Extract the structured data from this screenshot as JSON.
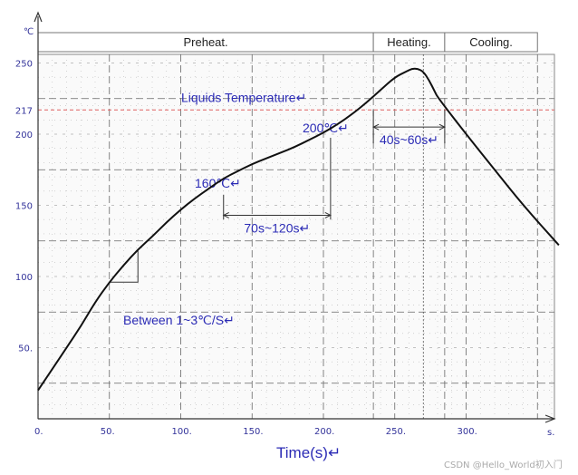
{
  "chart_data": {
    "type": "line",
    "title": "",
    "xlabel": "Time(s)↵",
    "ylabel": "",
    "y_unit": "℃",
    "x_unit": "s.",
    "xlim": [
      0,
      370
    ],
    "ylim": [
      0,
      255
    ],
    "x_ticks": [
      {
        "value": 0,
        "label": "0."
      },
      {
        "value": 50,
        "label": "50."
      },
      {
        "value": 100,
        "label": "100."
      },
      {
        "value": 150,
        "label": "150."
      },
      {
        "value": 200,
        "label": "200."
      },
      {
        "value": 250,
        "label": "250."
      },
      {
        "value": 300,
        "label": "300."
      }
    ],
    "y_ticks": [
      {
        "value": 50,
        "label": "50."
      },
      {
        "value": 100,
        "label": "100"
      },
      {
        "value": 150,
        "label": "150"
      },
      {
        "value": 200,
        "label": "200"
      },
      {
        "value": 217,
        "label": "217"
      },
      {
        "value": 250,
        "label": "250"
      }
    ],
    "grid": true,
    "zones": [
      {
        "label": "Preheat.",
        "x_start": 0,
        "x_end": 235
      },
      {
        "label": "Heating.",
        "x_start": 235,
        "x_end": 285
      },
      {
        "label": "Cooling.",
        "x_start": 285,
        "x_end": 350
      }
    ],
    "series": [
      {
        "x": [
          0,
          10,
          20,
          30,
          40,
          50,
          60,
          70,
          80,
          90,
          100,
          110,
          120,
          130,
          140,
          150,
          160,
          170,
          180,
          190,
          200,
          210,
          220,
          230,
          240,
          250,
          258,
          262,
          266,
          270,
          274,
          278,
          280,
          300,
          320,
          340,
          365
        ],
        "y": [
          20,
          35,
          50,
          65,
          82,
          96,
          108,
          119,
          128,
          138,
          147,
          155,
          162,
          169,
          174,
          179,
          183,
          187,
          191,
          196,
          201,
          207,
          214,
          222,
          231,
          240,
          244,
          246,
          246,
          244,
          238,
          230,
          226,
          200,
          175,
          150,
          122
        ]
      }
    ],
    "reference_lines": [
      {
        "label": "Liquids Temperature↵",
        "y": 217,
        "color": "#e06060"
      }
    ],
    "annotations": [
      {
        "label": "Between 1~3℃/S↵",
        "type": "slope",
        "x1": 50,
        "x2": 70,
        "y1": 96,
        "y2": 119
      },
      {
        "label": "160℃↵",
        "type": "point",
        "x": 130,
        "y": 160
      },
      {
        "label": "200℃↵",
        "type": "point",
        "x": 205,
        "y": 200
      },
      {
        "label": "70s~120s↵",
        "type": "span",
        "x1": 130,
        "x2": 205,
        "y": 143
      },
      {
        "label": "40s~60s↵",
        "type": "span",
        "x1": 235,
        "x2": 285,
        "y": 205
      }
    ],
    "colors": {
      "curve": "#111111",
      "grid": "#666666",
      "text": "#2b2bb5",
      "liquidus": "#e06060"
    }
  },
  "watermark": "CSDN @Hello_World初入门"
}
